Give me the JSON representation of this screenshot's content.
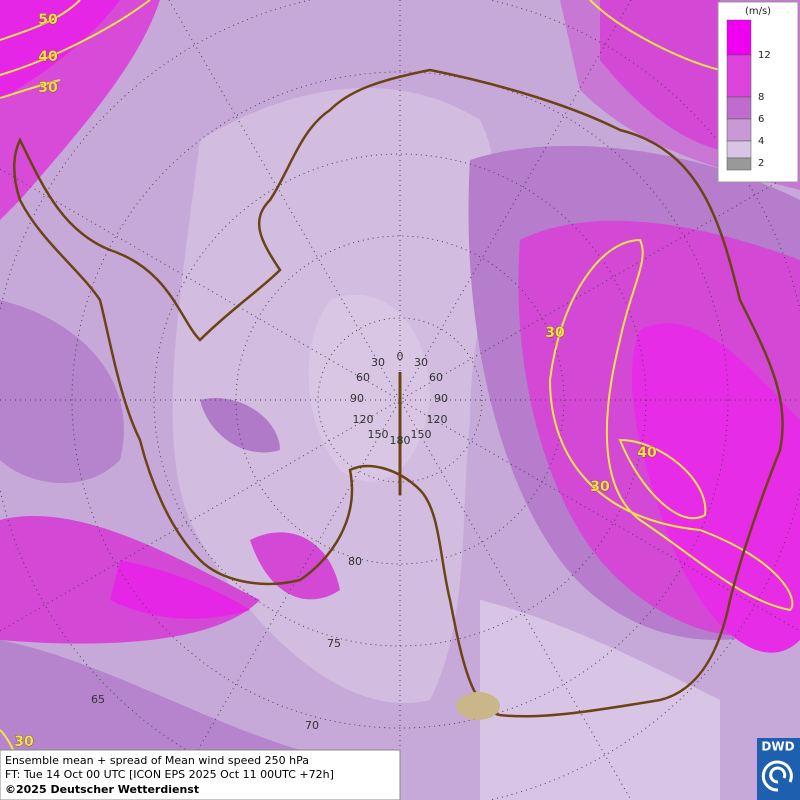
{
  "legend": {
    "unit": "(m/s)",
    "ticks": [
      12,
      8,
      6,
      4,
      2
    ]
  },
  "contour_labels": [
    50,
    40,
    30,
    30,
    40,
    30,
    30
  ],
  "graticule": {
    "longitude_labels": [
      0,
      30,
      30,
      60,
      60,
      90,
      90,
      120,
      120,
      150,
      150,
      180
    ],
    "latitude_labels": [
      80,
      75,
      70,
      65
    ]
  },
  "caption": {
    "line1": "Ensemble mean + spread of Mean wind speed 250 hPa",
    "line2": "FT: Tue 14 Oct 00 UTC [ICON EPS 2025 Oct 11 00UTC +72h]",
    "line3": "©2025 Deutscher Wetterdienst"
  },
  "logo": "DWD"
}
